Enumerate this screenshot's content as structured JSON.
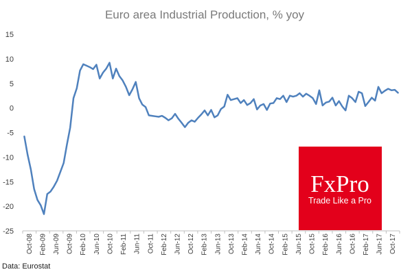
{
  "chart_data": {
    "type": "line",
    "title": "Euro area Industrial Production, % yoy",
    "xlabel": "",
    "ylabel": "",
    "ylim": [
      -25,
      15
    ],
    "yticks": [
      15,
      10,
      5,
      0,
      -5,
      -10,
      -15,
      -20,
      -25
    ],
    "xtick_labels": [
      "Oct-08",
      "Feb-09",
      "Jun-09",
      "Oct-09",
      "Feb-10",
      "Jun-10",
      "Oct-10",
      "Feb-11",
      "Jun-11",
      "Oct-11",
      "Feb-12",
      "Jun-12",
      "Oct-12",
      "Feb-13",
      "Jun-13",
      "Oct-13",
      "Feb-14",
      "Jun-14",
      "Oct-14",
      "Feb-15",
      "Jun-15",
      "Oct-15",
      "Feb-16",
      "Jun-16",
      "Oct-16",
      "Feb-17",
      "Jun-17",
      "Oct-17"
    ],
    "grid": false,
    "series": [
      {
        "name": "Industrial Production % yoy",
        "color": "#4f81bd",
        "values": [
          -5.8,
          -9.5,
          -12.5,
          -16.5,
          -18.7,
          -19.8,
          -21.6,
          -17.5,
          -17.0,
          -16.0,
          -14.8,
          -13.0,
          -11.2,
          -7.5,
          -4.0,
          2.0,
          4.0,
          7.6,
          8.9,
          8.6,
          8.3,
          7.9,
          8.8,
          6.0,
          7.2,
          8.0,
          9.2,
          6.0,
          8.0,
          6.5,
          5.6,
          4.3,
          2.6,
          3.8,
          5.3,
          2.0,
          0.7,
          0.2,
          -1.5,
          -1.6,
          -1.7,
          -1.8,
          -1.6,
          -2.0,
          -2.5,
          -2.1,
          -1.2,
          -2.2,
          -3.0,
          -3.9,
          -3.0,
          -2.5,
          -2.8,
          -2.0,
          -1.3,
          -0.5,
          -1.5,
          -0.4,
          -1.9,
          -1.5,
          -0.2,
          0.3,
          2.7,
          1.6,
          1.8,
          2.0,
          1.0,
          1.6,
          0.6,
          1.0,
          1.8,
          -0.3,
          0.5,
          0.8,
          -0.4,
          0.9,
          1.0,
          2.0,
          1.8,
          2.5,
          1.2,
          2.5,
          2.3,
          2.5,
          3.0,
          2.3,
          2.9,
          2.5,
          2.0,
          0.8,
          3.6,
          0.5,
          1.1,
          1.3,
          2.1,
          0.5,
          1.4,
          0.3,
          -0.5,
          2.5,
          2.0,
          1.2,
          3.3,
          3.0,
          0.4,
          1.2,
          2.1,
          1.5,
          4.3,
          3.0,
          3.5,
          3.9,
          3.6,
          3.7,
          3.1
        ]
      }
    ]
  },
  "source": "Data: Eurostat",
  "logo": {
    "brand": "FxPro",
    "tagline": "Trade Like a Pro",
    "bg_color": "#e3001b"
  }
}
